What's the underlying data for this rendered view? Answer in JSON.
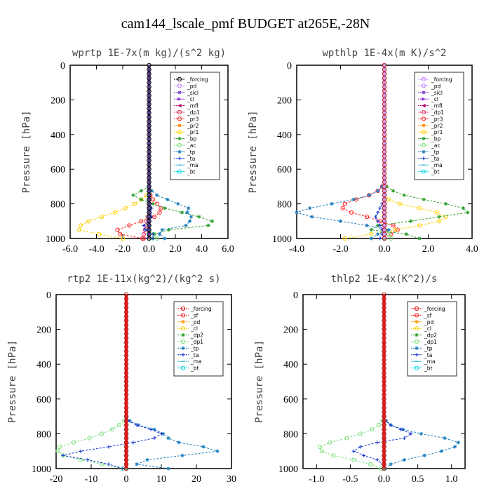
{
  "figure_title": "cam144_lscale_pmf  BUDGET at265E,-28N",
  "chart_data": [
    {
      "type": "line",
      "title": "wprtp  1E-7x(m kg)/(s^2 kg)",
      "ylabel": "Pressure [hPa]",
      "xlim": [
        -6,
        6
      ],
      "ylim": [
        1000,
        0
      ],
      "xticks": [
        "-6.0",
        "-4.0",
        "-2.0",
        "0.0",
        "2.0",
        "4.0",
        "6.0"
      ],
      "yticks": [
        "0",
        "200",
        "400",
        "600",
        "800",
        "1000"
      ],
      "legend_position": "top-right",
      "pressure_levels": [
        1000,
        975,
        950,
        925,
        900,
        875,
        850,
        825,
        800,
        775,
        750,
        725,
        700
      ],
      "series": [
        {
          "name": "_forcing",
          "color": "#000000",
          "marker": "o",
          "values": [
            0,
            0,
            0,
            0,
            0,
            0,
            0,
            0,
            0,
            0,
            0,
            0,
            0
          ]
        },
        {
          "name": "_pd",
          "color": "#c080ff",
          "marker": "o",
          "values": [
            0,
            0,
            0,
            0,
            0,
            0,
            0,
            0,
            0,
            0,
            0,
            0,
            0
          ]
        },
        {
          "name": "_sicl",
          "color": "#7a3bd1",
          "marker": "*",
          "values": [
            0,
            0,
            0,
            0,
            0,
            0,
            0,
            0,
            0,
            0,
            0,
            0,
            0
          ]
        },
        {
          "name": "_cl",
          "color": "#8b2ad6",
          "marker": ">",
          "values": [
            0,
            0,
            0,
            0,
            0,
            0,
            0,
            0,
            0,
            0,
            0,
            0,
            0
          ]
        },
        {
          "name": "_mfl",
          "color": "#b00060",
          "marker": "<",
          "values": [
            0,
            0,
            0,
            0,
            0,
            0,
            0,
            0,
            0,
            0,
            0,
            0,
            0
          ]
        },
        {
          "name": "_dp1",
          "color": "#e03060",
          "marker": "o",
          "values": [
            -0.4,
            -0.4,
            -0.3,
            -0.2,
            -0.2,
            -0.1,
            0,
            0,
            0,
            0,
            0,
            0,
            0
          ]
        },
        {
          "name": "_pr3",
          "color": "#ff2020",
          "marker": "o",
          "values": [
            -0.5,
            -2.2,
            -2.4,
            -1.5,
            -0.6,
            0.4,
            0.8,
            0.9,
            0.6,
            0.3,
            0.1,
            0,
            0
          ]
        },
        {
          "name": "_pr2",
          "color": "#ff8800",
          "marker": "*",
          "values": [
            0,
            0,
            0,
            0,
            0,
            0,
            0,
            0,
            0,
            0,
            0,
            0,
            0
          ]
        },
        {
          "name": "_pr1",
          "color": "#ffd000",
          "marker": "o",
          "values": [
            -2.0,
            -3.8,
            -5.3,
            -5.2,
            -4.6,
            -3.6,
            -2.6,
            -1.8,
            -1.1,
            -0.6,
            -0.2,
            0,
            0
          ]
        },
        {
          "name": "_bp",
          "color": "#30a030",
          "marker": "*",
          "values": [
            0.3,
            0.4,
            1.5,
            4.5,
            4.8,
            3.8,
            2.5,
            1.2,
            0.3,
            -0.6,
            -1.2,
            -0.6,
            0
          ]
        },
        {
          "name": "_ac",
          "color": "#80e080",
          "marker": "o",
          "values": [
            0.6,
            0.4,
            0,
            0,
            0,
            0,
            0,
            0,
            0,
            0,
            0,
            0,
            0
          ]
        },
        {
          "name": "_tp",
          "color": "#2080c0",
          "marker": "*",
          "values": [
            1.2,
            0.8,
            1.0,
            2.8,
            3.1,
            3.2,
            2.9,
            3.0,
            2.2,
            1.4,
            0.6,
            0.2,
            0
          ]
        },
        {
          "name": "_ta",
          "color": "#1030d0",
          "marker": "+",
          "values": [
            0.3,
            0.3,
            -0.3,
            -0.4,
            0,
            0.2,
            0.1,
            0.2,
            0.1,
            0,
            0,
            0,
            0
          ]
        },
        {
          "name": "_ma",
          "color": "#20b0d0",
          "marker": "-",
          "values": [
            0,
            0,
            0,
            0,
            0,
            0,
            0,
            0,
            0,
            0,
            0,
            0,
            0
          ]
        },
        {
          "name": "_bt",
          "color": "#00d8e0",
          "marker": "o",
          "values": [
            0,
            0,
            0,
            0,
            0,
            0,
            0,
            0,
            0,
            0,
            0,
            0,
            0
          ]
        }
      ]
    },
    {
      "type": "line",
      "title": "wpthlp  1E-4x(m K)/s^2",
      "ylabel": "Pressure [hPa]",
      "xlim": [
        -4,
        4
      ],
      "ylim": [
        1000,
        0
      ],
      "xticks": [
        "-4.0",
        "-2.0",
        "0.0",
        "2.0",
        "4.0"
      ],
      "yticks": [
        "0",
        "200",
        "400",
        "600",
        "800",
        "1000"
      ],
      "legend_position": "top-right",
      "pressure_levels": [
        1000,
        975,
        950,
        925,
        900,
        875,
        850,
        825,
        800,
        775,
        750,
        725,
        700
      ],
      "series": [
        {
          "name": "_forcing",
          "color": "#c080ff",
          "marker": "o",
          "values": [
            0,
            0,
            0,
            0,
            0,
            0,
            0,
            0,
            0,
            0,
            0,
            0,
            0
          ]
        },
        {
          "name": "_pd",
          "color": "#c080ff",
          "marker": "o",
          "values": [
            0,
            0,
            0,
            0,
            0,
            0,
            0,
            0,
            0,
            0,
            0,
            0,
            0
          ]
        },
        {
          "name": "_sicl",
          "color": "#7a3bd1",
          "marker": "*",
          "values": [
            0,
            0,
            0,
            0,
            0,
            0,
            0,
            0,
            0,
            0,
            0,
            0,
            0
          ]
        },
        {
          "name": "_cl",
          "color": "#8b2ad6",
          "marker": ">",
          "values": [
            0,
            0,
            0,
            0,
            0,
            0,
            0,
            0,
            0,
            0,
            0,
            0,
            0
          ]
        },
        {
          "name": "_mfl",
          "color": "#b00060",
          "marker": "<",
          "values": [
            0,
            0,
            0,
            0,
            0,
            0,
            0,
            0,
            0,
            0,
            0,
            0,
            0
          ]
        },
        {
          "name": "_dp1",
          "color": "#e03060",
          "marker": "o",
          "values": [
            0,
            0,
            0,
            0,
            0,
            0,
            0,
            0,
            0,
            0,
            0,
            0,
            0
          ]
        },
        {
          "name": "_pr3",
          "color": "#ff2020",
          "marker": "o",
          "values": [
            0,
            0.3,
            0.6,
            0.4,
            -0.2,
            -0.8,
            -1.5,
            -1.9,
            -1.8,
            -1.3,
            -0.7,
            -0.3,
            -0.1
          ]
        },
        {
          "name": "_pr2",
          "color": "#ff8800",
          "marker": "*",
          "values": [
            0,
            0,
            0,
            0,
            0,
            0,
            0,
            0,
            0,
            0,
            0,
            0,
            0
          ]
        },
        {
          "name": "_pr1",
          "color": "#ffd000",
          "marker": "o",
          "values": [
            -1.8,
            -0.6,
            0.5,
            1.6,
            2.5,
            2.8,
            2.4,
            1.6,
            0.7,
            0.2,
            0,
            0,
            0
          ]
        },
        {
          "name": "_bp",
          "color": "#30a030",
          "marker": "*",
          "values": [
            1.6,
            1.0,
            -0.6,
            -0.3,
            1.2,
            2.5,
            3.8,
            3.6,
            2.8,
            1.8,
            0.9,
            0.4,
            0.1
          ]
        },
        {
          "name": "_ac",
          "color": "#80e080",
          "marker": "o",
          "values": [
            0.3,
            0.2,
            0,
            0,
            0,
            0,
            0,
            0,
            0,
            0,
            0,
            0,
            0
          ]
        },
        {
          "name": "_tp",
          "color": "#2080c0",
          "marker": "*",
          "values": [
            -0.6,
            -0.3,
            0.2,
            -0.8,
            -2.0,
            -3.3,
            -4.0,
            -3.4,
            -2.4,
            -1.4,
            -0.7,
            -0.3,
            -0.1
          ]
        },
        {
          "name": "_ta",
          "color": "#1030d0",
          "marker": "+",
          "values": [
            -0.2,
            -0.1,
            -0.1,
            -0.2,
            -0.3,
            -0.4,
            -0.3,
            -0.2,
            -0.1,
            0,
            0,
            0,
            0
          ]
        },
        {
          "name": "_ma",
          "color": "#20b0d0",
          "marker": "-",
          "values": [
            0,
            0,
            0,
            0,
            0,
            0,
            0,
            0,
            0,
            0,
            0,
            0,
            0
          ]
        },
        {
          "name": "_bt",
          "color": "#00d8e0",
          "marker": "o",
          "values": [
            0,
            0,
            0,
            0,
            0,
            0,
            0,
            0,
            0,
            0,
            0,
            0,
            0
          ]
        }
      ]
    },
    {
      "type": "line",
      "title": "rtp2  1E-11x(kg^2)/(kg^2 s)",
      "ylabel": "Pressure [hPa]",
      "xlim": [
        -20,
        30
      ],
      "ylim": [
        1000,
        0
      ],
      "xticks": [
        "-20",
        "-10",
        "0",
        "10",
        "20",
        "30"
      ],
      "yticks": [
        "0",
        "200",
        "400",
        "600",
        "800",
        "1000"
      ],
      "legend_position": "top-right",
      "pressure_levels": [
        1000,
        975,
        950,
        925,
        900,
        875,
        850,
        825,
        800,
        775,
        750,
        725,
        700
      ],
      "series": [
        {
          "name": "_forcing",
          "color": "#e01010",
          "marker": "o",
          "values": [
            0,
            0,
            0,
            0,
            0,
            0,
            0,
            0,
            0,
            0,
            0,
            0,
            0
          ]
        },
        {
          "name": "_sf",
          "color": "#ff2020",
          "marker": "o",
          "values": [
            0,
            0,
            0,
            0,
            0,
            0,
            0,
            0,
            0,
            0,
            0,
            0,
            0
          ]
        },
        {
          "name": "_pd",
          "color": "#ff9900",
          "marker": "*",
          "values": [
            0,
            0,
            0,
            0,
            0,
            0,
            0,
            0,
            0,
            0,
            0,
            0,
            0
          ]
        },
        {
          "name": "_cl",
          "color": "#ffd000",
          "marker": "o",
          "values": [
            0,
            0,
            0,
            0,
            0,
            0,
            0,
            0,
            0,
            0,
            0,
            0,
            0
          ]
        },
        {
          "name": "_dp2",
          "color": "#30a030",
          "marker": "*",
          "values": [
            0,
            0,
            0,
            0,
            0,
            0,
            0,
            0,
            0,
            0,
            0,
            0,
            0
          ]
        },
        {
          "name": "_dp1",
          "color": "#80e080",
          "marker": "o",
          "values": [
            -1.0,
            -7.0,
            -13.0,
            -18.0,
            -19.5,
            -19.0,
            -15.0,
            -10.5,
            -7.0,
            -4.0,
            -2.0,
            -0.7,
            0
          ]
        },
        {
          "name": "_tp",
          "color": "#2080c0",
          "marker": "*",
          "values": [
            12.0,
            3.0,
            6.0,
            16.0,
            26.0,
            22.0,
            15.0,
            12.0,
            10.5,
            8.0,
            3.5,
            1.0,
            0
          ]
        },
        {
          "name": "_ta",
          "color": "#1030d0",
          "marker": "+",
          "values": [
            -1.0,
            -5.0,
            -11.0,
            -18.0,
            -13.0,
            -5.0,
            2.0,
            8.0,
            10.0,
            7.0,
            3.0,
            0.5,
            0
          ]
        },
        {
          "name": "_ma",
          "color": "#20b0d0",
          "marker": "-",
          "values": [
            0,
            0,
            0,
            0,
            0,
            0,
            0,
            0,
            0,
            0,
            0,
            0,
            0
          ]
        },
        {
          "name": "_bt",
          "color": "#00d8e0",
          "marker": "o",
          "values": [
            0,
            0,
            0,
            0,
            0,
            0,
            0,
            0,
            0,
            0,
            0,
            0,
            0
          ]
        }
      ]
    },
    {
      "type": "line",
      "title": "thlp2  1E-4x(K^2)/s",
      "ylabel": "Pressure [hPa]",
      "xlim": [
        -1.2,
        1.2
      ],
      "ylim": [
        1000,
        0
      ],
      "xticks": [
        "-1.0",
        "-0.5",
        "0.0",
        "0.5",
        "1.0"
      ],
      "yticks": [
        "0",
        "200",
        "400",
        "600",
        "800",
        "1000"
      ],
      "legend_position": "top-right",
      "pressure_levels": [
        1000,
        975,
        950,
        925,
        900,
        875,
        850,
        825,
        800,
        775,
        750,
        725,
        700
      ],
      "series": [
        {
          "name": "_forcing",
          "color": "#e01010",
          "marker": "o",
          "values": [
            0,
            0,
            0,
            0,
            0,
            0,
            0,
            0,
            0,
            0,
            0,
            0,
            0
          ]
        },
        {
          "name": "_sf",
          "color": "#ff2020",
          "marker": "o",
          "values": [
            0,
            0,
            0,
            0,
            0,
            0,
            0,
            0,
            0,
            0,
            0,
            0,
            0
          ]
        },
        {
          "name": "_pd",
          "color": "#ff9900",
          "marker": "*",
          "values": [
            0,
            0,
            0,
            0,
            0,
            0,
            0,
            0,
            0,
            0,
            0,
            0,
            0
          ]
        },
        {
          "name": "_cl",
          "color": "#ffd000",
          "marker": "o",
          "values": [
            0,
            0,
            0,
            0,
            0,
            0,
            0,
            0,
            0,
            0,
            0,
            0,
            0
          ]
        },
        {
          "name": "_dp2",
          "color": "#30a030",
          "marker": "*",
          "values": [
            0,
            0,
            0,
            0,
            0,
            0,
            0,
            0,
            0,
            0,
            0,
            0,
            0
          ]
        },
        {
          "name": "_dp1",
          "color": "#80e080",
          "marker": "o",
          "values": [
            -0.05,
            -0.2,
            -0.45,
            -0.75,
            -0.92,
            -0.95,
            -0.8,
            -0.55,
            -0.35,
            -0.18,
            -0.08,
            -0.02,
            0
          ]
        },
        {
          "name": "_tp",
          "color": "#2080c0",
          "marker": "*",
          "values": [
            0.02,
            0.1,
            0.3,
            0.6,
            0.85,
            1.05,
            1.1,
            0.9,
            0.55,
            0.28,
            0.1,
            0.03,
            0
          ]
        },
        {
          "name": "_ta",
          "color": "#1030d0",
          "marker": "+",
          "values": [
            0,
            -0.02,
            -0.1,
            -0.3,
            -0.45,
            -0.35,
            -0.1,
            0.3,
            0.4,
            0.25,
            0.1,
            0.02,
            0
          ]
        },
        {
          "name": "_ma",
          "color": "#20b0d0",
          "marker": "-",
          "values": [
            0,
            0,
            0,
            0,
            0,
            0,
            0,
            0,
            0,
            0,
            0,
            0,
            0
          ]
        },
        {
          "name": "_bt",
          "color": "#00d8e0",
          "marker": "o",
          "values": [
            0,
            0,
            0,
            0,
            0,
            0,
            0,
            0,
            0,
            0,
            0,
            0,
            0
          ]
        }
      ]
    }
  ]
}
